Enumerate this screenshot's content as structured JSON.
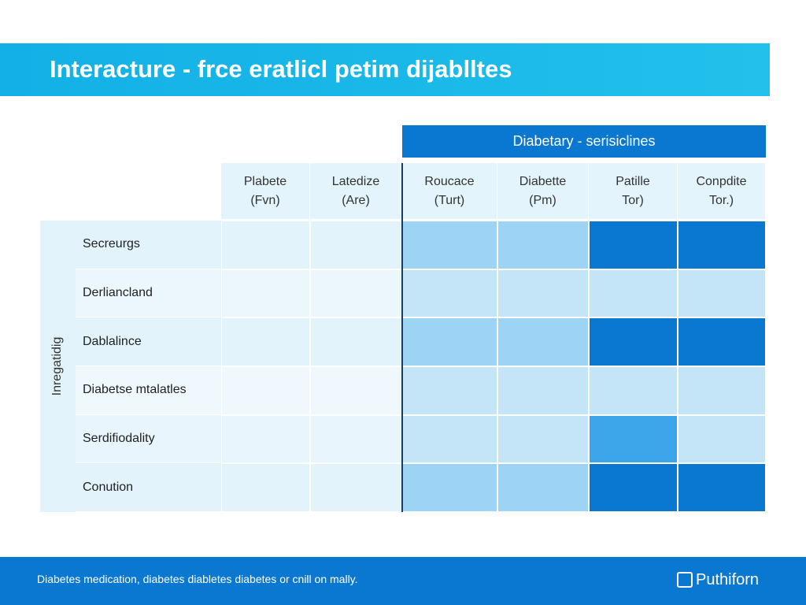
{
  "header": {
    "title": "Interacture - frce eratlicl petim dijablltes"
  },
  "table": {
    "group_header": "Diabetary - serisiclines",
    "side_label": "Inregatidig",
    "columns": [
      [
        "Plabete",
        "(Fvn)"
      ],
      [
        "Latedize",
        "(Are)"
      ],
      [
        "Roucace",
        "(Turt)"
      ],
      [
        "Diabette",
        "(Pm)"
      ],
      [
        "Patille",
        "Tor)"
      ],
      [
        "Conpdite",
        "Tor.)"
      ]
    ],
    "rows": [
      {
        "label": "Secreurgs",
        "colors": [
          "#e3f3fb",
          "#e3f3fb",
          "#9dd4f5",
          "#9dd4f5",
          "#0a78d0",
          "#0a78d0"
        ]
      },
      {
        "label": "Derliancland",
        "colors": [
          "#ecf7fd",
          "#ecf7fd",
          "#c4e4f8",
          "#c4e4f8",
          "#c4e4f8",
          "#c4e4f8"
        ]
      },
      {
        "label": "Dablalince",
        "colors": [
          "#e3f3fb",
          "#e3f3fb",
          "#9dd4f5",
          "#9dd4f5",
          "#0a78d0",
          "#0a78d0"
        ]
      },
      {
        "label": "Diabetse mtalatles",
        "colors": [
          "#eff8fd",
          "#eff8fd",
          "#c4e4f8",
          "#c4e4f8",
          "#c4e4f8",
          "#c4e4f8"
        ]
      },
      {
        "label": "Serdifiodality",
        "colors": [
          "#e8f5fc",
          "#e8f5fc",
          "#c4e4f8",
          "#c4e4f8",
          "#3da6ea",
          "#c4e4f8"
        ]
      },
      {
        "label": "Conution",
        "colors": [
          "#e3f3fb",
          "#e3f3fb",
          "#9dd4f5",
          "#9dd4f5",
          "#0a78d0",
          "#0a78d0"
        ]
      }
    ]
  },
  "footer": {
    "text": "Diabetes medication, diabetes diabletes diabetes or cnill on mally.",
    "brand": "Puthiforn"
  }
}
